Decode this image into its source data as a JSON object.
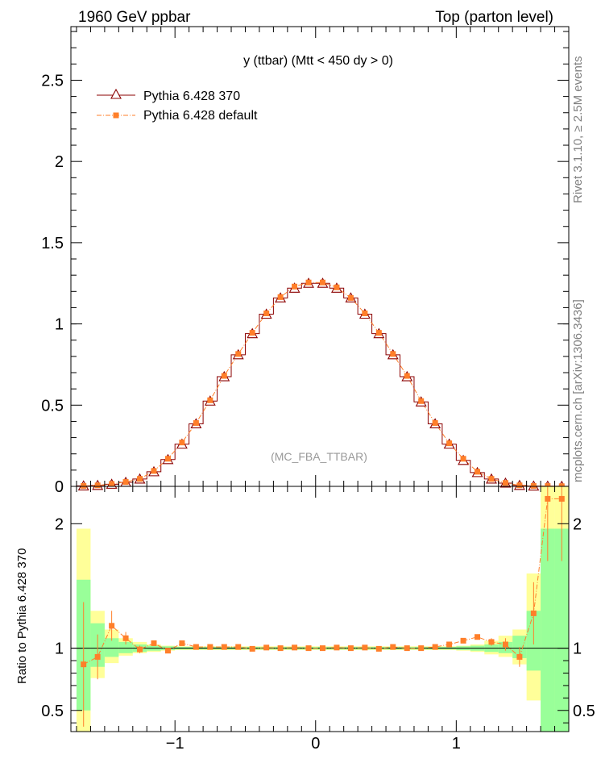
{
  "header": {
    "left": "1960 GeV ppbar",
    "right": "Top (parton level)"
  },
  "side_labels": {
    "rivet": "Rivet 3.1.10, ≥ 2.5M events",
    "mcplots": "mcplots.cern.ch [arXiv:1306.3436]"
  },
  "colors": {
    "series1": "#8b0000",
    "series2": "#ff7f2a",
    "band_inner": "#99ff99",
    "band_outer": "#ffff99",
    "watermark": "#999999"
  },
  "chart_data": [
    {
      "type": "line",
      "title": "y (ttbar) (Mtt < 450 dy > 0)",
      "watermark": "(MC_FBA_TTBAR)",
      "xlabel": "",
      "ylabel": "",
      "xlim": [
        -1.74,
        1.8
      ],
      "ylim": [
        0,
        2.83
      ],
      "yticks": [
        "0",
        "0.5",
        "1",
        "1.5",
        "2",
        "2.5"
      ],
      "legend_position": "top-left",
      "x": [
        -1.65,
        -1.55,
        -1.45,
        -1.35,
        -1.25,
        -1.15,
        -1.05,
        -0.95,
        -0.85,
        -0.75,
        -0.65,
        -0.55,
        -0.45,
        -0.35,
        -0.25,
        -0.15,
        -0.05,
        0.05,
        0.15,
        0.25,
        0.35,
        0.45,
        0.55,
        0.65,
        0.75,
        0.85,
        0.95,
        1.05,
        1.15,
        1.25,
        1.35,
        1.45,
        1.55,
        1.65,
        1.75
      ],
      "series": [
        {
          "name": "Pythia 6.428 370",
          "marker": "open-triangle",
          "values": [
            0.003,
            0.006,
            0.013,
            0.025,
            0.045,
            0.09,
            0.165,
            0.26,
            0.385,
            0.525,
            0.675,
            0.81,
            0.94,
            1.06,
            1.16,
            1.22,
            1.25,
            1.25,
            1.22,
            1.16,
            1.06,
            0.94,
            0.81,
            0.675,
            0.52,
            0.385,
            0.26,
            0.16,
            0.085,
            0.045,
            0.02,
            0.006,
            0.002,
            0.001,
            0.0008
          ]
        },
        {
          "name": "Pythia 6.428 default",
          "marker": "filled-square",
          "values": [
            0.003,
            0.006,
            0.015,
            0.027,
            0.046,
            0.095,
            0.17,
            0.27,
            0.39,
            0.53,
            0.68,
            0.815,
            0.945,
            1.065,
            1.165,
            1.23,
            1.255,
            1.255,
            1.225,
            1.16,
            1.065,
            0.945,
            0.815,
            0.68,
            0.525,
            0.39,
            0.265,
            0.17,
            0.09,
            0.046,
            0.021,
            0.006,
            0.003,
            0.002,
            0.001
          ]
        }
      ]
    },
    {
      "type": "line",
      "title": "",
      "xlabel": "",
      "ylabel": "Ratio to Pythia 6.428 370",
      "xlim": [
        -1.74,
        1.8
      ],
      "ylim": [
        0.33,
        2.3
      ],
      "xticks": [
        "−1",
        "0",
        "1"
      ],
      "yticks": [
        "0.5",
        "1",
        "2"
      ],
      "x": [
        -1.65,
        -1.55,
        -1.45,
        -1.35,
        -1.25,
        -1.15,
        -1.05,
        -0.95,
        -0.85,
        -0.75,
        -0.65,
        -0.55,
        -0.45,
        -0.35,
        -0.25,
        -0.15,
        -0.05,
        0.05,
        0.15,
        0.25,
        0.35,
        0.45,
        0.55,
        0.65,
        0.75,
        0.85,
        0.95,
        1.05,
        1.15,
        1.25,
        1.35,
        1.45,
        1.55,
        1.65,
        1.75
      ],
      "band_inner": [
        [
          0.5,
          1.55
        ],
        [
          0.85,
          1.2
        ],
        [
          0.93,
          1.08
        ],
        [
          0.96,
          1.05
        ],
        [
          0.97,
          1.03
        ],
        [
          0.98,
          1.02
        ],
        [
          0.985,
          1.015
        ],
        [
          0.99,
          1.01
        ],
        [
          0.99,
          1.01
        ],
        [
          0.99,
          1.01
        ],
        [
          0.99,
          1.01
        ],
        [
          0.99,
          1.01
        ],
        [
          0.99,
          1.01
        ],
        [
          0.99,
          1.01
        ],
        [
          0.99,
          1.01
        ],
        [
          0.99,
          1.01
        ],
        [
          0.99,
          1.01
        ],
        [
          0.99,
          1.01
        ],
        [
          0.99,
          1.01
        ],
        [
          0.99,
          1.01
        ],
        [
          0.99,
          1.01
        ],
        [
          0.99,
          1.01
        ],
        [
          0.99,
          1.01
        ],
        [
          0.99,
          1.01
        ],
        [
          0.99,
          1.01
        ],
        [
          0.99,
          1.01
        ],
        [
          0.99,
          1.01
        ],
        [
          0.985,
          1.015
        ],
        [
          0.98,
          1.02
        ],
        [
          0.97,
          1.03
        ],
        [
          0.96,
          1.05
        ],
        [
          0.92,
          1.1
        ],
        [
          0.82,
          1.3
        ],
        [
          0.33,
          1.96
        ],
        [
          0.33,
          1.96
        ]
      ],
      "band_outer": [
        [
          0.33,
          1.96
        ],
        [
          0.76,
          1.3
        ],
        [
          0.88,
          1.15
        ],
        [
          0.94,
          1.08
        ],
        [
          0.96,
          1.05
        ],
        [
          0.97,
          1.03
        ],
        [
          0.98,
          1.02
        ],
        [
          0.985,
          1.015
        ],
        [
          0.985,
          1.015
        ],
        [
          0.985,
          1.015
        ],
        [
          0.985,
          1.015
        ],
        [
          0.985,
          1.015
        ],
        [
          0.985,
          1.015
        ],
        [
          0.985,
          1.015
        ],
        [
          0.985,
          1.015
        ],
        [
          0.985,
          1.015
        ],
        [
          0.985,
          1.015
        ],
        [
          0.985,
          1.015
        ],
        [
          0.985,
          1.015
        ],
        [
          0.985,
          1.015
        ],
        [
          0.985,
          1.015
        ],
        [
          0.985,
          1.015
        ],
        [
          0.985,
          1.015
        ],
        [
          0.985,
          1.015
        ],
        [
          0.985,
          1.015
        ],
        [
          0.985,
          1.015
        ],
        [
          0.985,
          1.015
        ],
        [
          0.98,
          1.02
        ],
        [
          0.97,
          1.03
        ],
        [
          0.95,
          1.06
        ],
        [
          0.93,
          1.1
        ],
        [
          0.87,
          1.15
        ],
        [
          0.58,
          1.6
        ],
        [
          0.33,
          2.3
        ],
        [
          0.33,
          2.3
        ]
      ],
      "series": [
        {
          "name": "Pythia 6.428 default",
          "values": [
            0.87,
            0.93,
            1.18,
            1.08,
            0.99,
            1.04,
            0.98,
            1.04,
            1.01,
            1.01,
            1.01,
            1.01,
            0.995,
            1.005,
            1.0,
            1.005,
            1.0,
            1.0,
            1.005,
            1.0,
            1.005,
            0.995,
            1.01,
            1.0,
            1.0,
            1.01,
            1.03,
            1.06,
            1.09,
            1.05,
            1.03,
            0.93,
            1.28,
            2.2,
            2.2
          ],
          "errors": [
            0.5,
            0.18,
            0.12,
            0.05,
            0.03,
            0.02,
            0.015,
            0.01,
            0.01,
            0.01,
            0.01,
            0.01,
            0.01,
            0.01,
            0.01,
            0.01,
            0.01,
            0.01,
            0.01,
            0.01,
            0.01,
            0.01,
            0.01,
            0.01,
            0.01,
            0.01,
            0.01,
            0.015,
            0.02,
            0.03,
            0.05,
            0.08,
            0.25,
            0.5,
            0.5
          ]
        }
      ]
    }
  ]
}
